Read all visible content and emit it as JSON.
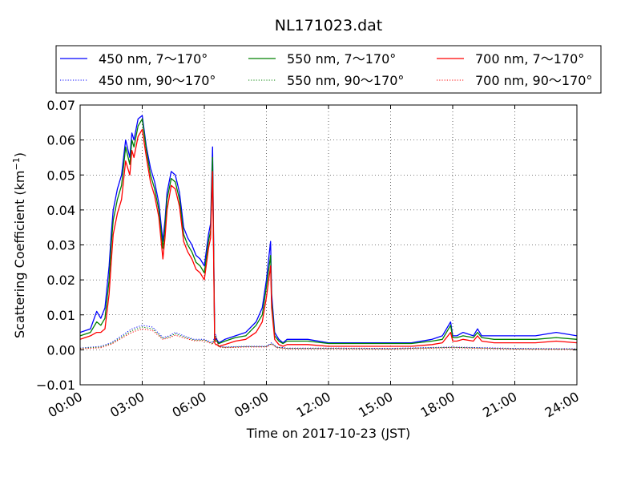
{
  "chart_data": {
    "type": "line",
    "title": "NL171023.dat",
    "xlabel": "Time on 2017-10-23 (JST)",
    "ylabel": "Scattering Coefficient (km",
    "ylabel_exp": "−1",
    "ylabel_close": ")",
    "xlim": [
      0,
      24
    ],
    "ylim": [
      -0.01,
      0.07
    ],
    "x_ticks": [
      0,
      3,
      6,
      9,
      12,
      15,
      18,
      21,
      24
    ],
    "x_tick_labels": [
      "00:00",
      "03:00",
      "06:00",
      "09:00",
      "12:00",
      "15:00",
      "18:00",
      "21:00",
      "24:00"
    ],
    "y_ticks": [
      -0.01,
      0,
      0.01,
      0.02,
      0.03,
      0.04,
      0.05,
      0.06,
      0.07
    ],
    "y_tick_labels": [
      "−0.01",
      "0.00",
      "0.01",
      "0.02",
      "0.03",
      "0.04",
      "0.05",
      "0.06",
      "0.07"
    ],
    "grid": true,
    "legend_position": "above plot",
    "series": [
      {
        "name": "450 nm, 7～170°",
        "color": "#0000ff",
        "style": "solid",
        "x": [
          0,
          0.5,
          0.8,
          1.0,
          1.2,
          1.4,
          1.5,
          1.6,
          1.8,
          2.0,
          2.2,
          2.4,
          2.5,
          2.6,
          2.8,
          3.0,
          3.2,
          3.4,
          3.6,
          3.8,
          4.0,
          4.1,
          4.2,
          4.4,
          4.6,
          4.8,
          5.0,
          5.2,
          5.3,
          5.4,
          5.6,
          5.8,
          6.0,
          6.2,
          6.3,
          6.4,
          6.5,
          6.55,
          6.6,
          6.7,
          7.0,
          7.5,
          8.0,
          8.5,
          8.8,
          9.0,
          9.2,
          9.25,
          9.4,
          9.6,
          9.8,
          10.0,
          11.0,
          12.0,
          13.0,
          14.0,
          15.0,
          16.0,
          17.0,
          17.5,
          17.9,
          18.0,
          18.2,
          18.5,
          19.0,
          19.2,
          19.4,
          20.0,
          21.0,
          22.0,
          23.0,
          24.0
        ],
        "y": [
          0.005,
          0.006,
          0.011,
          0.009,
          0.012,
          0.024,
          0.033,
          0.04,
          0.046,
          0.05,
          0.06,
          0.055,
          0.062,
          0.06,
          0.066,
          0.067,
          0.058,
          0.052,
          0.048,
          0.042,
          0.031,
          0.037,
          0.045,
          0.051,
          0.05,
          0.045,
          0.035,
          0.032,
          0.031,
          0.03,
          0.027,
          0.026,
          0.024,
          0.033,
          0.036,
          0.058,
          0.004,
          0.003,
          0.003,
          0.002,
          0.003,
          0.004,
          0.005,
          0.008,
          0.012,
          0.02,
          0.031,
          0.016,
          0.005,
          0.003,
          0.002,
          0.003,
          0.003,
          0.002,
          0.002,
          0.002,
          0.002,
          0.002,
          0.003,
          0.004,
          0.008,
          0.004,
          0.004,
          0.005,
          0.004,
          0.006,
          0.004,
          0.004,
          0.004,
          0.004,
          0.005,
          0.004
        ]
      },
      {
        "name": "450 nm, 90～170°",
        "color": "#0000ff",
        "style": "dotted",
        "x": [
          0,
          1,
          1.5,
          2,
          2.5,
          3,
          3.5,
          4,
          4.3,
          4.6,
          5,
          5.5,
          6,
          6.4,
          6.55,
          6.7,
          7,
          8,
          9,
          9.25,
          9.5,
          10,
          12,
          15,
          18,
          21,
          24
        ],
        "y": [
          0.0005,
          0.001,
          0.002,
          0.004,
          0.006,
          0.007,
          0.0065,
          0.0035,
          0.004,
          0.005,
          0.004,
          0.003,
          0.003,
          0.002,
          0.0045,
          0.001,
          0.0008,
          0.001,
          0.001,
          0.002,
          0.0008,
          0.0005,
          0.0005,
          0.0004,
          0.0008,
          0.0004,
          0.0003
        ]
      },
      {
        "name": "550 nm, 7～170°",
        "color": "#008000",
        "style": "solid",
        "x": [
          0,
          0.5,
          0.8,
          1.0,
          1.2,
          1.4,
          1.5,
          1.6,
          1.8,
          2.0,
          2.2,
          2.4,
          2.5,
          2.6,
          2.8,
          3.0,
          3.2,
          3.4,
          3.6,
          3.8,
          4.0,
          4.1,
          4.2,
          4.4,
          4.6,
          4.8,
          5.0,
          5.2,
          5.3,
          5.4,
          5.6,
          5.8,
          6.0,
          6.2,
          6.3,
          6.4,
          6.5,
          6.55,
          6.6,
          6.7,
          7.0,
          7.5,
          8.0,
          8.5,
          8.8,
          9.0,
          9.2,
          9.25,
          9.4,
          9.6,
          9.8,
          10.0,
          11.0,
          12.0,
          13.0,
          14.0,
          15.0,
          16.0,
          17.0,
          17.5,
          17.9,
          18.0,
          18.2,
          18.5,
          19.0,
          19.2,
          19.4,
          20.0,
          21.0,
          22.0,
          23.0,
          24.0
        ],
        "y": [
          0.004,
          0.005,
          0.008,
          0.007,
          0.009,
          0.02,
          0.03,
          0.037,
          0.043,
          0.047,
          0.058,
          0.053,
          0.06,
          0.058,
          0.064,
          0.066,
          0.057,
          0.05,
          0.046,
          0.04,
          0.029,
          0.035,
          0.043,
          0.049,
          0.048,
          0.043,
          0.033,
          0.03,
          0.029,
          0.028,
          0.025,
          0.024,
          0.022,
          0.031,
          0.034,
          0.055,
          0.003,
          0.0025,
          0.0025,
          0.0018,
          0.0025,
          0.0035,
          0.004,
          0.007,
          0.01,
          0.018,
          0.027,
          0.014,
          0.004,
          0.0025,
          0.0018,
          0.0025,
          0.0025,
          0.0018,
          0.0018,
          0.0018,
          0.0018,
          0.0018,
          0.0025,
          0.003,
          0.007,
          0.0035,
          0.0035,
          0.004,
          0.0035,
          0.005,
          0.0035,
          0.003,
          0.003,
          0.003,
          0.0035,
          0.003
        ]
      },
      {
        "name": "550 nm, 90～170°",
        "color": "#008000",
        "style": "dotted",
        "x": [
          0,
          1,
          1.5,
          2,
          2.5,
          3,
          3.5,
          4,
          4.3,
          4.6,
          5,
          5.5,
          6,
          6.4,
          6.55,
          6.7,
          7,
          8,
          9,
          9.25,
          9.5,
          10,
          12,
          15,
          18,
          21,
          24
        ],
        "y": [
          0.0004,
          0.0008,
          0.0018,
          0.0036,
          0.0055,
          0.0065,
          0.006,
          0.0032,
          0.0037,
          0.0046,
          0.0037,
          0.0028,
          0.0028,
          0.0018,
          0.004,
          0.0009,
          0.0007,
          0.0009,
          0.0009,
          0.0018,
          0.0007,
          0.0004,
          0.0004,
          0.0003,
          0.0007,
          0.0003,
          0.0002
        ]
      },
      {
        "name": "700 nm, 7～170°",
        "color": "#ff0000",
        "style": "solid",
        "x": [
          0,
          0.5,
          0.8,
          1.0,
          1.2,
          1.4,
          1.5,
          1.6,
          1.8,
          2.0,
          2.2,
          2.4,
          2.5,
          2.6,
          2.8,
          3.0,
          3.2,
          3.4,
          3.6,
          3.8,
          4.0,
          4.1,
          4.2,
          4.4,
          4.6,
          4.8,
          5.0,
          5.2,
          5.3,
          5.4,
          5.6,
          5.8,
          6.0,
          6.2,
          6.3,
          6.4,
          6.5,
          6.55,
          6.6,
          6.7,
          7.0,
          7.5,
          8.0,
          8.5,
          8.8,
          9.0,
          9.2,
          9.25,
          9.4,
          9.6,
          9.8,
          10.0,
          11.0,
          12.0,
          13.0,
          14.0,
          15.0,
          16.0,
          17.0,
          17.5,
          17.9,
          18.0,
          18.2,
          18.5,
          19.0,
          19.2,
          19.4,
          20.0,
          21.0,
          22.0,
          23.0,
          24.0
        ],
        "y": [
          0.003,
          0.004,
          0.005,
          0.005,
          0.006,
          0.016,
          0.025,
          0.033,
          0.039,
          0.043,
          0.054,
          0.05,
          0.057,
          0.055,
          0.061,
          0.063,
          0.055,
          0.048,
          0.044,
          0.038,
          0.026,
          0.032,
          0.04,
          0.047,
          0.046,
          0.041,
          0.031,
          0.028,
          0.027,
          0.026,
          0.023,
          0.022,
          0.02,
          0.029,
          0.032,
          0.051,
          0.002,
          0.0015,
          0.0015,
          0.001,
          0.0015,
          0.0025,
          0.003,
          0.005,
          0.008,
          0.015,
          0.024,
          0.012,
          0.003,
          0.0015,
          0.001,
          0.0015,
          0.0015,
          0.001,
          0.001,
          0.001,
          0.001,
          0.001,
          0.0015,
          0.002,
          0.005,
          0.0025,
          0.0025,
          0.003,
          0.0025,
          0.004,
          0.0025,
          0.002,
          0.002,
          0.002,
          0.0025,
          0.002
        ]
      },
      {
        "name": "700 nm, 90～170°",
        "color": "#ff0000",
        "style": "dotted",
        "x": [
          0,
          1,
          1.5,
          2,
          2.5,
          3,
          3.5,
          4,
          4.3,
          4.6,
          5,
          5.5,
          6,
          6.4,
          6.55,
          6.7,
          7,
          8,
          9,
          9.25,
          9.5,
          10,
          12,
          15,
          18,
          21,
          24
        ],
        "y": [
          0.0003,
          0.0006,
          0.0016,
          0.0033,
          0.005,
          0.006,
          0.0055,
          0.003,
          0.0034,
          0.0042,
          0.0034,
          0.0026,
          0.0026,
          0.0016,
          0.0036,
          0.0008,
          0.0006,
          0.0008,
          0.0008,
          0.0016,
          0.0006,
          0.0003,
          0.0003,
          0.0002,
          0.0006,
          0.0002,
          0.0001
        ]
      }
    ]
  }
}
